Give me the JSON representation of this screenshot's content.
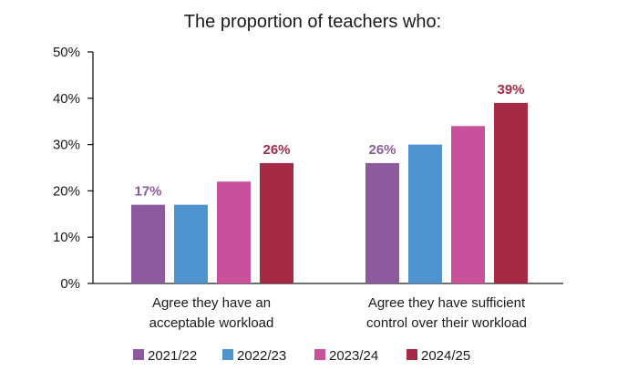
{
  "chart_data": {
    "type": "bar",
    "title": "The proportion of teachers who:",
    "categories": [
      [
        "Agree they have an",
        "acceptable workload"
      ],
      [
        "Agree they have sufficient",
        "control over their workload"
      ]
    ],
    "series": [
      {
        "name": "2021/22",
        "color": "#8e5a9e",
        "values": [
          17,
          26
        ]
      },
      {
        "name": "2022/23",
        "color": "#4f93cf",
        "values": [
          17,
          30
        ]
      },
      {
        "name": "2023/24",
        "color": "#c9509a",
        "values": [
          22,
          34
        ]
      },
      {
        "name": "2024/25",
        "color": "#a52a45",
        "values": [
          26,
          39
        ]
      }
    ],
    "data_labels": [
      {
        "category": 0,
        "series": 0,
        "text": "17%",
        "color": "#8e5a9e"
      },
      {
        "category": 0,
        "series": 3,
        "text": "26%",
        "color": "#a52a45"
      },
      {
        "category": 1,
        "series": 0,
        "text": "26%",
        "color": "#8e5a9e"
      },
      {
        "category": 1,
        "series": 3,
        "text": "39%",
        "color": "#a52a45"
      }
    ],
    "y_ticks": [
      "0%",
      "10%",
      "20%",
      "30%",
      "40%",
      "50%"
    ],
    "ylim": [
      0,
      50
    ],
    "grid": false,
    "legend_position": "bottom"
  }
}
